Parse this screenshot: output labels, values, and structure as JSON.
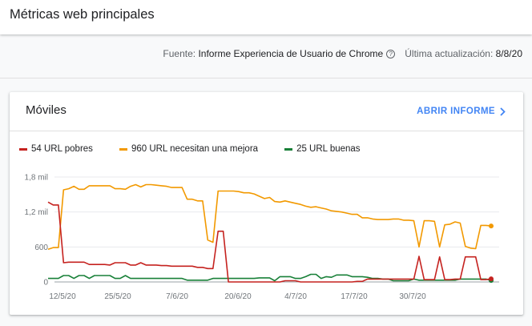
{
  "header": {
    "title": "Métricas web principales"
  },
  "meta": {
    "source_label": "Fuente:",
    "source_value": "Informe Experiencia de Usuario de Chrome",
    "help_icon": "?",
    "updated_label": "Última actualización:",
    "updated_value": "8/8/20"
  },
  "card": {
    "title": "Móviles",
    "open_report_label": "ABRIR INFORME",
    "legend": [
      {
        "label": "54 URL pobres",
        "color": "#c5221f"
      },
      {
        "label": "960 URL necesitan una mejora",
        "color": "#f29900"
      },
      {
        "label": "25 URL buenas",
        "color": "#188038"
      }
    ]
  },
  "chart_data": {
    "type": "line",
    "title": "Móviles",
    "xlabel": "",
    "ylabel": "",
    "ylim": [
      0,
      1800
    ],
    "y_ticks": [
      "0",
      "600",
      "1,2 mil",
      "1,8 mil"
    ],
    "x_ticks": [
      "12/5/20",
      "25/5/20",
      "7/6/20",
      "20/6/20",
      "4/7/20",
      "17/7/20",
      "30/7/20"
    ],
    "grid": true,
    "legend_position": "top",
    "x_start": "12/5/20",
    "x_end": "8/8/20",
    "series": [
      {
        "name": "54 URL pobres",
        "color": "#c5221f",
        "values": [
          1370,
          1320,
          1320,
          330,
          340,
          340,
          340,
          340,
          300,
          300,
          300,
          300,
          290,
          330,
          330,
          330,
          290,
          290,
          330,
          290,
          290,
          290,
          280,
          280,
          270,
          270,
          270,
          270,
          270,
          250,
          250,
          230,
          230,
          870,
          870,
          0,
          0,
          0,
          0,
          0,
          0,
          0,
          0,
          0,
          0,
          0,
          20,
          20,
          20,
          0,
          0,
          0,
          0,
          0,
          0,
          0,
          0,
          0,
          0,
          0,
          10,
          10,
          50,
          50,
          50,
          50,
          50,
          50,
          50,
          50,
          50,
          50,
          440,
          40,
          40,
          40,
          430,
          40,
          40,
          50,
          50,
          430,
          430,
          430,
          40,
          40,
          54
        ]
      },
      {
        "name": "960 URL necesitan una mejora",
        "color": "#f29900",
        "values": [
          560,
          590,
          590,
          1580,
          1600,
          1640,
          1590,
          1590,
          1650,
          1650,
          1650,
          1650,
          1650,
          1600,
          1600,
          1590,
          1640,
          1670,
          1630,
          1670,
          1670,
          1660,
          1650,
          1640,
          1620,
          1620,
          1620,
          1420,
          1420,
          1390,
          1390,
          720,
          680,
          1560,
          1560,
          1560,
          1560,
          1550,
          1530,
          1530,
          1510,
          1470,
          1430,
          1450,
          1380,
          1370,
          1390,
          1370,
          1350,
          1330,
          1300,
          1280,
          1290,
          1270,
          1250,
          1220,
          1210,
          1200,
          1180,
          1160,
          1160,
          1100,
          1100,
          1080,
          1070,
          1070,
          1070,
          1080,
          1080,
          1060,
          1060,
          1050,
          600,
          1050,
          1050,
          1040,
          600,
          980,
          990,
          1030,
          1010,
          610,
          580,
          570,
          970,
          970,
          960
        ]
      },
      {
        "name": "25 URL buenas",
        "color": "#188038",
        "values": [
          60,
          60,
          60,
          110,
          110,
          60,
          110,
          110,
          60,
          110,
          110,
          110,
          110,
          60,
          60,
          110,
          60,
          60,
          60,
          60,
          60,
          60,
          60,
          60,
          60,
          60,
          60,
          30,
          30,
          30,
          30,
          30,
          60,
          60,
          60,
          60,
          60,
          60,
          60,
          60,
          60,
          70,
          70,
          70,
          20,
          90,
          90,
          90,
          60,
          60,
          90,
          130,
          130,
          60,
          90,
          80,
          120,
          120,
          120,
          90,
          90,
          90,
          80,
          60,
          60,
          50,
          50,
          20,
          20,
          20,
          20,
          50,
          30,
          30,
          30,
          30,
          30,
          30,
          30,
          30,
          50,
          50,
          50,
          50,
          50,
          50,
          25
        ]
      }
    ]
  }
}
